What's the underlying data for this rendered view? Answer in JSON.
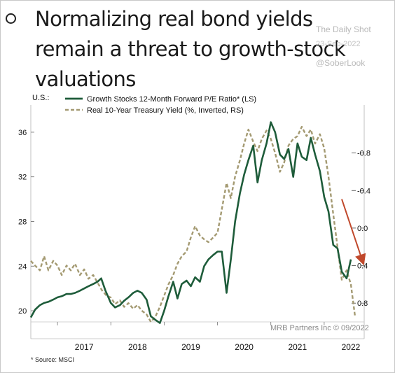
{
  "header": {
    "title": "Normalizing real bond yields remain a threat to growth-stock valuations",
    "watermark_source": "The Daily Shot",
    "watermark_date": "23-Sep-2022",
    "watermark_handle": "@SoberLook"
  },
  "chart_data": {
    "type": "line",
    "country_label": "U.S.:",
    "credit": "MRB Partners Inc © 09/2022",
    "footnote": "* Source: MSCI",
    "x_ticks": [
      "2017",
      "2018",
      "2019",
      "2020",
      "2021",
      "2022"
    ],
    "x_range": [
      2016.5,
      2022.75
    ],
    "left_axis": {
      "ticks": [
        20,
        24,
        28,
        32,
        36
      ],
      "range": [
        19,
        37.5
      ]
    },
    "right_axis": {
      "ticks": [
        -0.8,
        -0.4,
        0.0,
        0.4,
        0.8
      ],
      "range": [
        1.0,
        -1.2
      ],
      "inverted": true
    },
    "legend_position": "top",
    "series": [
      {
        "name": "Growth Stocks 12-Month Forward P/E Ratio* (LS)",
        "axis": "left",
        "color": "#1e5c3a",
        "style": "solid",
        "points": [
          [
            2016.5,
            19.4
          ],
          [
            2016.58,
            20.1
          ],
          [
            2016.67,
            20.5
          ],
          [
            2016.75,
            20.7
          ],
          [
            2016.83,
            20.8
          ],
          [
            2016.92,
            21.0
          ],
          [
            2017.0,
            21.2
          ],
          [
            2017.08,
            21.3
          ],
          [
            2017.17,
            21.5
          ],
          [
            2017.25,
            21.5
          ],
          [
            2017.33,
            21.6
          ],
          [
            2017.42,
            21.8
          ],
          [
            2017.5,
            22.0
          ],
          [
            2017.58,
            22.2
          ],
          [
            2017.67,
            22.4
          ],
          [
            2017.75,
            22.6
          ],
          [
            2017.82,
            22.9
          ],
          [
            2017.9,
            21.8
          ],
          [
            2018.0,
            20.7
          ],
          [
            2018.08,
            20.3
          ],
          [
            2018.17,
            20.5
          ],
          [
            2018.25,
            20.9
          ],
          [
            2018.33,
            21.2
          ],
          [
            2018.42,
            21.6
          ],
          [
            2018.5,
            21.8
          ],
          [
            2018.58,
            21.6
          ],
          [
            2018.67,
            21.0
          ],
          [
            2018.75,
            19.5
          ],
          [
            2018.83,
            19.2
          ],
          [
            2018.92,
            18.9
          ],
          [
            2019.0,
            20.0
          ],
          [
            2019.08,
            21.3
          ],
          [
            2019.17,
            22.6
          ],
          [
            2019.25,
            21.1
          ],
          [
            2019.33,
            22.4
          ],
          [
            2019.42,
            22.7
          ],
          [
            2019.5,
            22.2
          ],
          [
            2019.58,
            23.0
          ],
          [
            2019.67,
            22.6
          ],
          [
            2019.75,
            24.0
          ],
          [
            2019.83,
            24.6
          ],
          [
            2019.92,
            25.0
          ],
          [
            2020.0,
            25.3
          ],
          [
            2020.08,
            25.3
          ],
          [
            2020.17,
            21.6
          ],
          [
            2020.25,
            24.6
          ],
          [
            2020.33,
            28.0
          ],
          [
            2020.42,
            30.5
          ],
          [
            2020.5,
            32.2
          ],
          [
            2020.58,
            33.5
          ],
          [
            2020.67,
            34.8
          ],
          [
            2020.75,
            31.5
          ],
          [
            2020.83,
            33.5
          ],
          [
            2020.92,
            35.0
          ],
          [
            2021.0,
            36.9
          ],
          [
            2021.08,
            36.0
          ],
          [
            2021.17,
            34.0
          ],
          [
            2021.25,
            33.6
          ],
          [
            2021.33,
            34.5
          ],
          [
            2021.42,
            32.0
          ],
          [
            2021.5,
            35.0
          ],
          [
            2021.58,
            33.8
          ],
          [
            2021.67,
            33.5
          ],
          [
            2021.75,
            35.5
          ],
          [
            2021.83,
            34.0
          ],
          [
            2021.92,
            32.5
          ],
          [
            2022.0,
            30.2
          ],
          [
            2022.08,
            28.9
          ],
          [
            2022.17,
            25.9
          ],
          [
            2022.25,
            25.6
          ],
          [
            2022.33,
            23.5
          ],
          [
            2022.42,
            22.9
          ],
          [
            2022.5,
            24.6
          ]
        ]
      },
      {
        "name": "Real 10-Year Treasury Yield (%, Inverted, RS)",
        "axis": "right",
        "color": "#a49a72",
        "style": "dashed",
        "points": [
          [
            2016.5,
            0.35
          ],
          [
            2016.58,
            0.4
          ],
          [
            2016.67,
            0.45
          ],
          [
            2016.75,
            0.3
          ],
          [
            2016.83,
            0.45
          ],
          [
            2016.92,
            0.35
          ],
          [
            2017.0,
            0.4
          ],
          [
            2017.08,
            0.5
          ],
          [
            2017.17,
            0.4
          ],
          [
            2017.25,
            0.45
          ],
          [
            2017.33,
            0.38
          ],
          [
            2017.42,
            0.5
          ],
          [
            2017.5,
            0.44
          ],
          [
            2017.58,
            0.54
          ],
          [
            2017.67,
            0.5
          ],
          [
            2017.75,
            0.58
          ],
          [
            2017.83,
            0.66
          ],
          [
            2017.92,
            0.72
          ],
          [
            2018.0,
            0.74
          ],
          [
            2018.08,
            0.81
          ],
          [
            2018.17,
            0.77
          ],
          [
            2018.25,
            0.84
          ],
          [
            2018.33,
            0.8
          ],
          [
            2018.42,
            0.86
          ],
          [
            2018.5,
            0.82
          ],
          [
            2018.58,
            0.88
          ],
          [
            2018.67,
            0.92
          ],
          [
            2018.75,
            1.0
          ],
          [
            2018.83,
            0.95
          ],
          [
            2018.92,
            0.84
          ],
          [
            2019.0,
            0.72
          ],
          [
            2019.08,
            0.6
          ],
          [
            2019.17,
            0.5
          ],
          [
            2019.25,
            0.38
          ],
          [
            2019.33,
            0.3
          ],
          [
            2019.42,
            0.25
          ],
          [
            2019.5,
            0.1
          ],
          [
            2019.58,
            -0.02
          ],
          [
            2019.67,
            0.08
          ],
          [
            2019.75,
            0.12
          ],
          [
            2019.83,
            0.15
          ],
          [
            2019.92,
            0.1
          ],
          [
            2020.0,
            0.05
          ],
          [
            2020.08,
            -0.2
          ],
          [
            2020.17,
            -0.48
          ],
          [
            2020.25,
            -0.32
          ],
          [
            2020.33,
            -0.55
          ],
          [
            2020.42,
            -0.72
          ],
          [
            2020.5,
            -0.9
          ],
          [
            2020.58,
            -1.05
          ],
          [
            2020.67,
            -0.92
          ],
          [
            2020.75,
            -0.82
          ],
          [
            2020.83,
            -0.95
          ],
          [
            2020.92,
            -1.04
          ],
          [
            2021.0,
            -0.95
          ],
          [
            2021.08,
            -0.8
          ],
          [
            2021.17,
            -0.6
          ],
          [
            2021.25,
            -0.7
          ],
          [
            2021.33,
            -0.88
          ],
          [
            2021.42,
            -0.95
          ],
          [
            2021.5,
            -0.98
          ],
          [
            2021.58,
            -1.08
          ],
          [
            2021.67,
            -0.98
          ],
          [
            2021.75,
            -1.05
          ],
          [
            2021.83,
            -0.9
          ],
          [
            2021.92,
            -1.0
          ],
          [
            2022.0,
            -0.85
          ],
          [
            2022.08,
            -0.55
          ],
          [
            2022.17,
            -0.15
          ],
          [
            2022.25,
            0.2
          ],
          [
            2022.33,
            0.55
          ],
          [
            2022.42,
            0.45
          ],
          [
            2022.5,
            0.6
          ],
          [
            2022.58,
            0.95
          ]
        ]
      }
    ],
    "annotation": {
      "type": "arrow",
      "color": "#c0482b",
      "from": [
        2022.33,
        30.0
      ],
      "to": [
        2022.73,
        24.3
      ]
    }
  }
}
